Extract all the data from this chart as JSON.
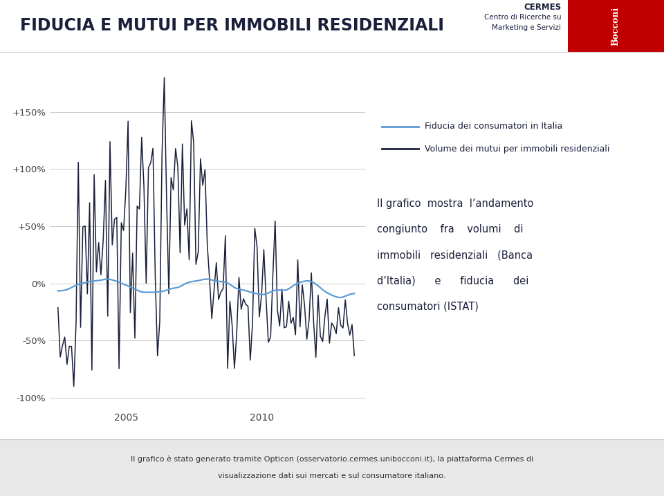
{
  "title": "FIDUCIA E MUTUI PER IMMOBILI RESIDENZIALI",
  "cermes_line1": "CERMES",
  "cermes_line2": "Centro di Ricerche su",
  "cermes_line3": "Marketing e Servizi",
  "legend_fiducia": "Fiducia dei consumatori in Italia",
  "legend_mutui": "Volume dei mutui per immobili residenziali",
  "desc_line1": "Il grafico  mostra  l’andamento",
  "desc_line2": "congiunto    fra    volumi    di",
  "desc_line3": "immobili   residenziali   (Banca",
  "desc_line4": "d’Italia)      e      fiducia      dei",
  "desc_line5": "consumatori (ISTAT)",
  "footer_line1": "Il grafico è stato generato tramite Opticon (osservatorio.cermes.unibocconi.it), la piattaforma Cermes di",
  "footer_line2": "visualizzazione dati sui mercati e sul consumatore italiano.",
  "footer_link": "osservatorio.cermes.unibocconi.it",
  "ytick_labels": [
    "+150%",
    "+100%",
    "+50%",
    "0%",
    "-50%",
    "-100%"
  ],
  "ytick_values": [
    150,
    100,
    50,
    0,
    -50,
    -100
  ],
  "color_fiducia": "#5b9bd5",
  "color_mutui": "#1a1f3a",
  "color_title": "#1a1f3a",
  "color_bg": "#ffffff",
  "color_footer_bg": "#e8e8e8",
  "color_gridline": "#c8c8c8",
  "color_bocconi": "#c00000",
  "ylim_min": -110,
  "ylim_max": 185,
  "xlim_min": 2002.2,
  "xlim_max": 2013.8
}
